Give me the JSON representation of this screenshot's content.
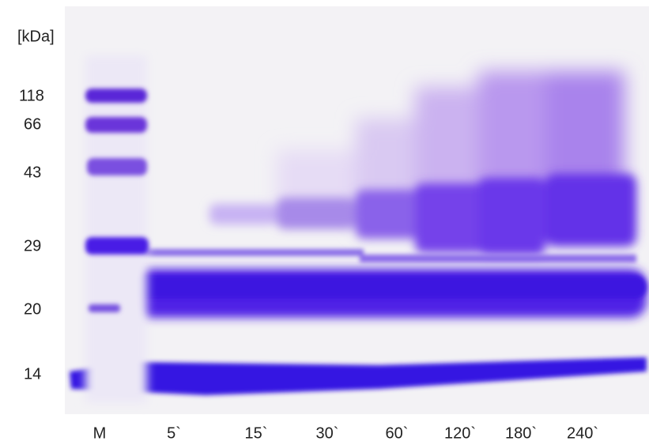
{
  "unit_label": "[kDa]",
  "markers": [
    "118",
    "66",
    "43",
    "29",
    "20",
    "14"
  ],
  "lanes": [
    "M",
    "5`",
    "15`",
    "30`",
    "60`",
    "120`",
    "180`",
    "240`"
  ]
}
